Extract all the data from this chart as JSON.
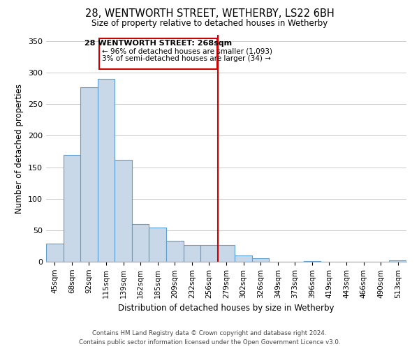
{
  "title": "28, WENTWORTH STREET, WETHERBY, LS22 6BH",
  "subtitle": "Size of property relative to detached houses in Wetherby",
  "xlabel": "Distribution of detached houses by size in Wetherby",
  "ylabel": "Number of detached properties",
  "bar_color": "#c8d8e8",
  "bar_edge_color": "#5a9fd4",
  "categories": [
    "45sqm",
    "68sqm",
    "92sqm",
    "115sqm",
    "139sqm",
    "162sqm",
    "185sqm",
    "209sqm",
    "232sqm",
    "256sqm",
    "279sqm",
    "302sqm",
    "326sqm",
    "349sqm",
    "373sqm",
    "396sqm",
    "419sqm",
    "443sqm",
    "466sqm",
    "490sqm",
    "513sqm"
  ],
  "values": [
    29,
    169,
    277,
    290,
    162,
    60,
    54,
    33,
    27,
    27,
    27,
    10,
    5,
    0,
    0,
    1,
    0,
    0,
    0,
    0,
    2
  ],
  "ylim": [
    0,
    360
  ],
  "yticks": [
    0,
    50,
    100,
    150,
    200,
    250,
    300,
    350
  ],
  "marker_label_bold": "28 WENTWORTH STREET: 268sqm",
  "marker_line_color": "#cc0000",
  "annotation_line1": "← 96% of detached houses are smaller (1,093)",
  "annotation_line2": "3% of semi-detached houses are larger (34) →",
  "footer_line1": "Contains HM Land Registry data © Crown copyright and database right 2024.",
  "footer_line2": "Contains public sector information licensed under the Open Government Licence v3.0.",
  "background_color": "#ffffff",
  "grid_color": "#cccccc"
}
